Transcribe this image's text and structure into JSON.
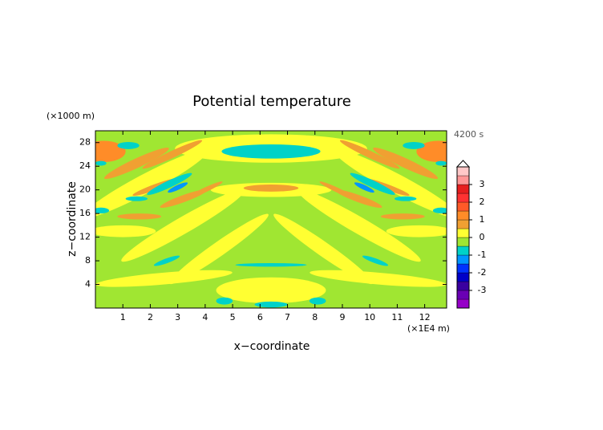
{
  "chart_data": {
    "type": "contour",
    "title": "Potential temperature",
    "y_unit": "(×1000 m)",
    "x_unit": "(×1E4 m)",
    "time_label": "4200 s",
    "xlabel": "x−coordinate",
    "ylabel": "z−coordinate",
    "xlim": [
      0,
      12.8
    ],
    "ylim": [
      0,
      30
    ],
    "xticks": [
      1,
      2,
      3,
      4,
      5,
      6,
      7,
      8,
      9,
      10,
      11,
      12
    ],
    "yticks": [
      4,
      8,
      12,
      16,
      20,
      24,
      28
    ],
    "background_value": -0.25,
    "levels": [
      -4,
      -3.5,
      -3,
      -2.5,
      -2,
      -1.5,
      -1,
      -0.5,
      0,
      0.5,
      1,
      1.5,
      2,
      2.5,
      3,
      3.5,
      4
    ],
    "colors": [
      "#9600c8",
      "#6a00b4",
      "#3a00a0",
      "#0000c8",
      "#0032ff",
      "#0096ff",
      "#00d2c8",
      "#a0e632",
      "#ffff32",
      "#f0a032",
      "#ff8c28",
      "#ff5a28",
      "#ff3232",
      "#e61e1e",
      "#ff9696",
      "#ffc8c8"
    ],
    "colorbar_ticks": [
      -3,
      -2,
      -1,
      0,
      1,
      2,
      3
    ],
    "contours": [
      {
        "x": 1.8,
        "z": 21,
        "rx": 2.6,
        "rz": 1.6,
        "angle": 28,
        "value": 0.25
      },
      {
        "x": 11.0,
        "z": 21,
        "rx": 2.6,
        "rz": 1.6,
        "angle": -28,
        "value": 0.25
      },
      {
        "x": 3.2,
        "z": 14,
        "rx": 2.6,
        "rz": 1.4,
        "angle": 30,
        "value": 0.25
      },
      {
        "x": 9.6,
        "z": 14,
        "rx": 2.6,
        "rz": 1.4,
        "angle": -30,
        "value": 0.25
      },
      {
        "x": 4.5,
        "z": 10,
        "rx": 2.2,
        "rz": 1.2,
        "angle": 35,
        "value": 0.25
      },
      {
        "x": 8.3,
        "z": 10,
        "rx": 2.2,
        "rz": 1.2,
        "angle": -35,
        "value": 0.25
      },
      {
        "x": 1.0,
        "z": 13,
        "rx": 1.2,
        "rz": 1.0,
        "angle": 0,
        "value": 0.25
      },
      {
        "x": 11.8,
        "z": 13,
        "rx": 1.2,
        "rz": 1.0,
        "angle": 0,
        "value": 0.25
      },
      {
        "x": 2.5,
        "z": 5,
        "rx": 2.5,
        "rz": 1.0,
        "angle": 5,
        "value": 0.25
      },
      {
        "x": 10.3,
        "z": 5,
        "rx": 2.5,
        "rz": 1.0,
        "angle": -5,
        "value": 0.25
      },
      {
        "x": 6.4,
        "z": 3,
        "rx": 2.0,
        "rz": 2.2,
        "angle": 0,
        "value": 0.25
      },
      {
        "x": 6.4,
        "z": 27,
        "rx": 3.5,
        "rz": 2.4,
        "angle": 0,
        "value": 0.25
      },
      {
        "x": 6.4,
        "z": 20,
        "rx": 2.2,
        "rz": 1.2,
        "angle": 0,
        "value": 0.25
      },
      {
        "x": 0.3,
        "z": 26.5,
        "rx": 0.8,
        "rz": 1.8,
        "angle": 0,
        "value": 1.25
      },
      {
        "x": 12.5,
        "z": 26.5,
        "rx": 0.8,
        "rz": 1.8,
        "angle": 0,
        "value": 1.25
      },
      {
        "x": 1.5,
        "z": 24.5,
        "rx": 1.3,
        "rz": 0.8,
        "angle": 25,
        "value": 0.75
      },
      {
        "x": 11.3,
        "z": 24.5,
        "rx": 1.3,
        "rz": 0.8,
        "angle": -25,
        "value": 0.75
      },
      {
        "x": 2.8,
        "z": 26,
        "rx": 1.2,
        "rz": 0.6,
        "angle": 25,
        "value": 0.75
      },
      {
        "x": 10.0,
        "z": 26,
        "rx": 1.2,
        "rz": 0.6,
        "angle": -25,
        "value": 0.75
      },
      {
        "x": 2.2,
        "z": 20.5,
        "rx": 0.9,
        "rz": 0.5,
        "angle": 20,
        "value": 0.75
      },
      {
        "x": 10.6,
        "z": 20.5,
        "rx": 0.9,
        "rz": 0.5,
        "angle": -20,
        "value": 0.75
      },
      {
        "x": 1.6,
        "z": 15.5,
        "rx": 0.8,
        "rz": 0.5,
        "angle": 0,
        "value": 0.75
      },
      {
        "x": 11.2,
        "z": 15.5,
        "rx": 0.8,
        "rz": 0.5,
        "angle": 0,
        "value": 0.75
      },
      {
        "x": 3.2,
        "z": 18.5,
        "rx": 0.9,
        "rz": 0.6,
        "angle": 20,
        "value": 0.75
      },
      {
        "x": 9.6,
        "z": 18.5,
        "rx": 0.9,
        "rz": 0.6,
        "angle": -20,
        "value": 0.75
      },
      {
        "x": 4.0,
        "z": 20,
        "rx": 0.7,
        "rz": 0.4,
        "angle": 25,
        "value": 0.75
      },
      {
        "x": 8.8,
        "z": 20,
        "rx": 0.7,
        "rz": 0.4,
        "angle": -25,
        "value": 0.75
      },
      {
        "x": 6.4,
        "z": 20.3,
        "rx": 1.0,
        "rz": 0.6,
        "angle": 0,
        "value": 0.75
      },
      {
        "x": 1.2,
        "z": 27.5,
        "rx": 0.4,
        "rz": 0.6,
        "angle": 0,
        "value": -0.75
      },
      {
        "x": 11.6,
        "z": 27.5,
        "rx": 0.4,
        "rz": 0.6,
        "angle": 0,
        "value": -0.75
      },
      {
        "x": 2.7,
        "z": 21,
        "rx": 0.9,
        "rz": 0.6,
        "angle": 25,
        "value": -0.75
      },
      {
        "x": 10.1,
        "z": 21,
        "rx": 0.9,
        "rz": 0.6,
        "angle": -25,
        "value": -0.75
      },
      {
        "x": 3.0,
        "z": 20.4,
        "rx": 0.4,
        "rz": 0.4,
        "angle": 25,
        "value": -1.25
      },
      {
        "x": 9.8,
        "z": 20.4,
        "rx": 0.4,
        "rz": 0.4,
        "angle": -25,
        "value": -1.25
      },
      {
        "x": 1.5,
        "z": 18.5,
        "rx": 0.4,
        "rz": 0.4,
        "angle": 0,
        "value": -0.75
      },
      {
        "x": 11.3,
        "z": 18.5,
        "rx": 0.4,
        "rz": 0.4,
        "angle": 0,
        "value": -0.75
      },
      {
        "x": 0.2,
        "z": 16.5,
        "rx": 0.3,
        "rz": 0.5,
        "angle": 0,
        "value": -0.75
      },
      {
        "x": 12.6,
        "z": 16.5,
        "rx": 0.3,
        "rz": 0.5,
        "angle": 0,
        "value": -0.75
      },
      {
        "x": 2.6,
        "z": 8,
        "rx": 0.5,
        "rz": 0.4,
        "angle": 20,
        "value": -0.75
      },
      {
        "x": 10.2,
        "z": 8,
        "rx": 0.5,
        "rz": 0.4,
        "angle": -20,
        "value": -0.75
      },
      {
        "x": 4.7,
        "z": 1.2,
        "rx": 0.3,
        "rz": 0.6,
        "angle": 0,
        "value": -0.75
      },
      {
        "x": 8.1,
        "z": 1.2,
        "rx": 0.3,
        "rz": 0.6,
        "angle": 0,
        "value": -0.75
      },
      {
        "x": 6.4,
        "z": 26.5,
        "rx": 1.8,
        "rz": 1.2,
        "angle": 0,
        "value": -0.75
      },
      {
        "x": 6.4,
        "z": 7.3,
        "rx": 1.3,
        "rz": 0.3,
        "angle": 0,
        "value": -0.75
      },
      {
        "x": 6.4,
        "z": 0.6,
        "rx": 0.6,
        "rz": 0.5,
        "angle": 0,
        "value": -0.75
      },
      {
        "x": 0.2,
        "z": 24.5,
        "rx": 0.2,
        "rz": 0.4,
        "angle": 0,
        "value": -0.75
      },
      {
        "x": 12.6,
        "z": 24.5,
        "rx": 0.2,
        "rz": 0.4,
        "angle": 0,
        "value": -0.75
      }
    ]
  }
}
